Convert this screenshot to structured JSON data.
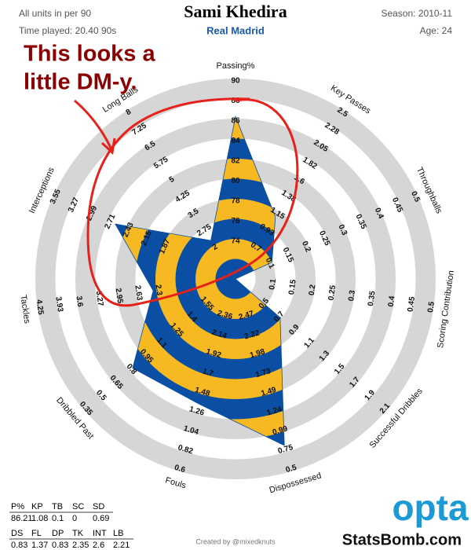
{
  "header": {
    "units": "All units in per 90",
    "time_played": "Time played: 20.40 90s",
    "season": "Season: 2010-11",
    "age": "Age: 24"
  },
  "annotation": {
    "lines": [
      "This looks a",
      "little DM-y."
    ],
    "color": "#8b0000"
  },
  "chart_data": {
    "type": "radar",
    "title": "Sami Khedira",
    "subtitle": "Real Madrid",
    "colors": {
      "stripe_a": "#0a4fa3",
      "stripe_b": "#f6b922",
      "ring": "#d6d6d6"
    },
    "axes": [
      {
        "name": "Passing%",
        "value": 86.21,
        "lim": [
          70,
          90
        ],
        "ticks": [
          74,
          76,
          78,
          80,
          82,
          84,
          86,
          88,
          90
        ]
      },
      {
        "name": "Key Passes",
        "value": 1.08,
        "lim": [
          0.25,
          2.5
        ],
        "ticks": [
          0.7,
          0.93,
          1.15,
          1.38,
          1.6,
          1.82,
          2.05,
          2.28,
          2.5
        ]
      },
      {
        "name": "Throughballs",
        "value": 0.1,
        "lim": [
          0,
          0.5
        ],
        "ticks": [
          0.1,
          0.15,
          0.2,
          0.25,
          0.3,
          0.35,
          0.4,
          0.45,
          0.5
        ]
      },
      {
        "name": "Scoring Contribution",
        "value": 0,
        "lim": [
          0,
          0.5
        ],
        "ticks": [
          0.1,
          0.15,
          0.2,
          0.25,
          0.3,
          0.35,
          0.4,
          0.45,
          0.5
        ]
      },
      {
        "name": "Successful Dribbles",
        "value": 0.69,
        "lim": [
          0.1,
          2.1
        ],
        "ticks": [
          0.5,
          0.7,
          0.9,
          1.1,
          1.3,
          1.5,
          1.7,
          1.9,
          2.1
        ]
      },
      {
        "name": "Dispossessed",
        "value": 0.83,
        "lim": [
          2.97,
          0.5
        ],
        "ticks": [
          2.47,
          2.22,
          1.98,
          1.73,
          1.49,
          1.24,
          0.99,
          0.75,
          0.5
        ]
      },
      {
        "name": "Fouls",
        "value": 1.37,
        "lim": [
          2.8,
          0.6
        ],
        "ticks": [
          2.36,
          2.14,
          1.92,
          1.7,
          1.48,
          1.26,
          1.04,
          0.82,
          0.6
        ]
      },
      {
        "name": "Dribbled Past",
        "value": 0.83,
        "lim": [
          1.85,
          0.35
        ],
        "ticks": [
          1.55,
          1.4,
          1.25,
          1.1,
          0.95,
          0.8,
          0.65,
          0.5,
          0.35
        ]
      },
      {
        "name": "Tackles",
        "value": 2.35,
        "lim": [
          1.0,
          4.25
        ],
        "ticks": [
          2.3,
          2.63,
          2.95,
          3.27,
          3.6,
          3.93,
          4.25
        ]
      },
      {
        "name": "Interceptions",
        "value": 2.6,
        "lim": [
          0.75,
          3.55
        ],
        "ticks": [
          1.87,
          2.15,
          2.43,
          2.71,
          2.99,
          3.27,
          3.55
        ]
      },
      {
        "name": "Long Balls",
        "value": 2.21,
        "lim": [
          0.5,
          8
        ],
        "ticks": [
          2,
          2.75,
          3.5,
          4.25,
          5,
          5.75,
          6.5,
          7.25,
          8
        ]
      }
    ]
  },
  "table": {
    "rows": [
      [
        "P%",
        "KP",
        "TB",
        "SC",
        "SD"
      ],
      [
        "DS",
        "FL",
        "DP",
        "TK",
        "INT",
        "LB"
      ]
    ]
  },
  "footer": {
    "credit": "Created by @mixedknuts",
    "logo": "opta",
    "site": "StatsBomb.com"
  }
}
